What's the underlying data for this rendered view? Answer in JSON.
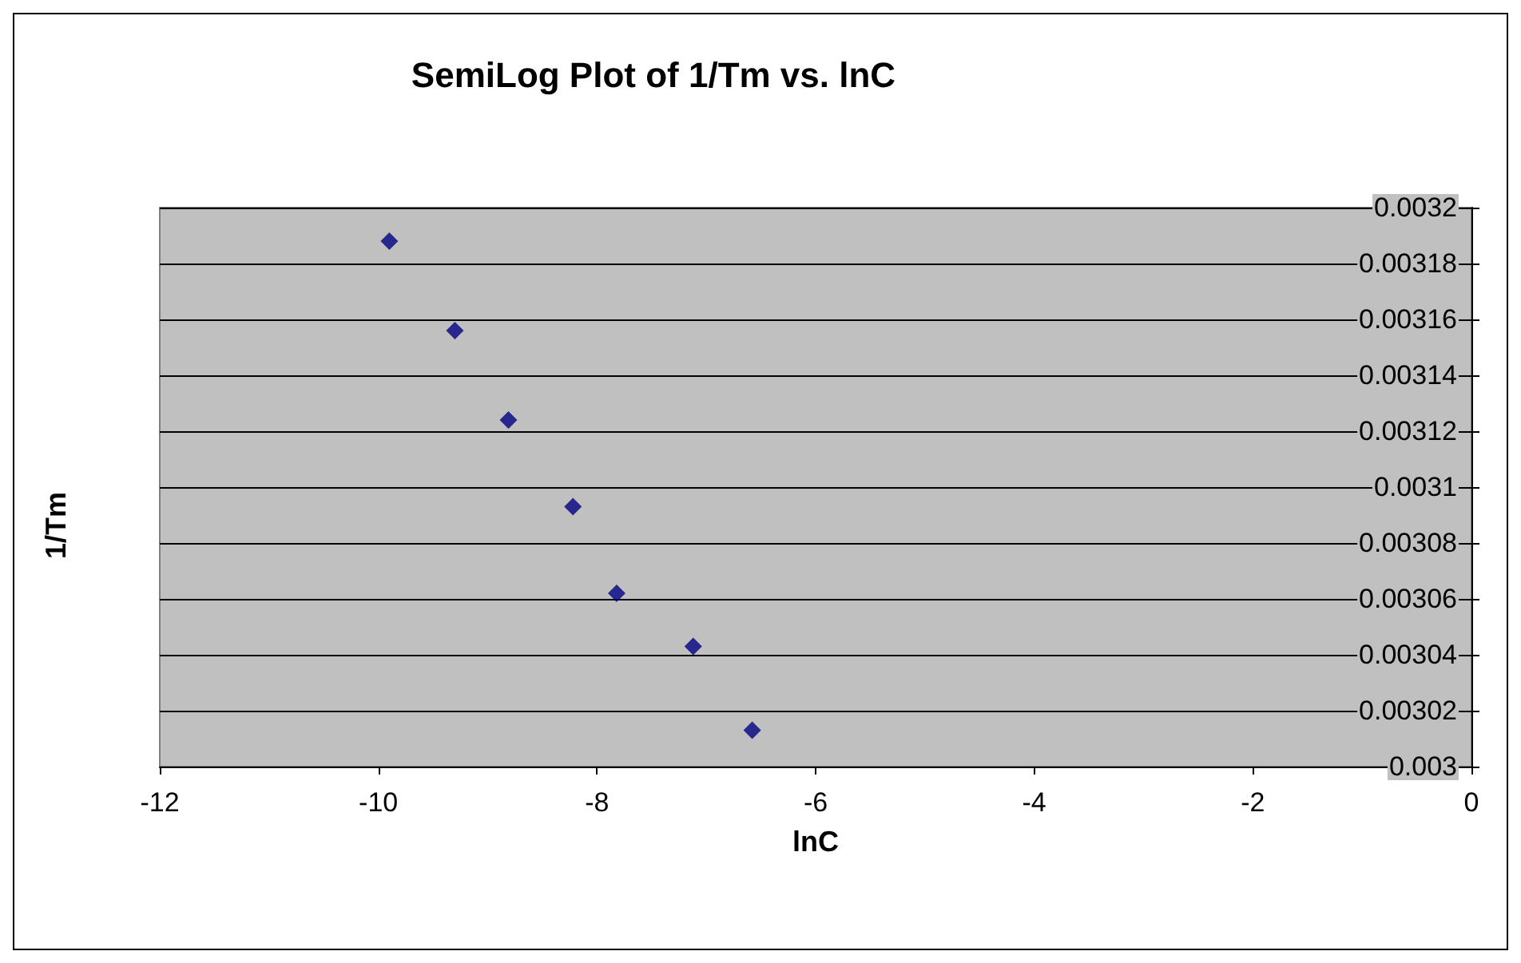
{
  "chart_data": {
    "type": "scatter",
    "title": "SemiLog Plot of 1/Tm vs. lnC",
    "xlabel": "lnC",
    "ylabel": "1/Tm",
    "x": [
      -9.9,
      -9.3,
      -8.81,
      -8.22,
      -7.82,
      -7.12,
      -6.58
    ],
    "series": [
      {
        "color": "#000080",
        "values": [
          0.003188,
          0.003156,
          0.003124,
          0.003093,
          0.003062,
          0.003043,
          0.003013
        ]
      }
    ],
    "xlim": [
      -12,
      0
    ],
    "xticks": [
      -12,
      -10,
      -8,
      -6,
      -4,
      -2,
      0
    ],
    "ylim": [
      0.003,
      0.0032
    ],
    "yticks": [
      0.003,
      0.00302,
      0.00304,
      0.00306,
      0.00308,
      0.0031,
      0.00312,
      0.00314,
      0.00316,
      0.00318,
      0.0032
    ],
    "grid": "y",
    "marker": "diamond"
  }
}
